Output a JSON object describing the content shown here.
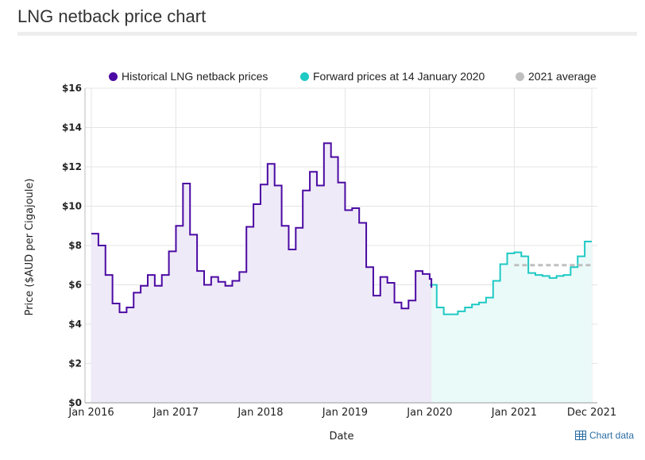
{
  "page": {
    "title": "LNG netback price chart",
    "chart_data_link": "Chart data"
  },
  "colors": {
    "historical": "#4b0aa3",
    "historical_fill": "#efeaf7",
    "forward": "#1fc9c4",
    "forward_fill": "#eafaf9",
    "average": "#bfbfbf",
    "grid": "#e4e4e4"
  },
  "icons": {
    "chart_data": "table-icon"
  },
  "chart_data": {
    "type": "line",
    "step": true,
    "ylabel": "Price ($AUD per Cigajoule)",
    "xlabel": "Date",
    "ylim": [
      0,
      16
    ],
    "xlim": [
      "2016-01",
      "2021-12"
    ],
    "yticks": [
      "$0",
      "$2",
      "$4",
      "$6",
      "$8",
      "$10",
      "$12",
      "$14",
      "$16"
    ],
    "xticks": [
      "Jan 2016",
      "Jan 2017",
      "Jan 2018",
      "Jan 2019",
      "Jan 2020",
      "Jan 2021",
      "Dec 2021"
    ],
    "grid": true,
    "legend_position": "top",
    "series": [
      {
        "name": "Historical LNG netback prices",
        "x": [
          "2016-01",
          "2016-02",
          "2016-03",
          "2016-04",
          "2016-05",
          "2016-06",
          "2016-07",
          "2016-08",
          "2016-09",
          "2016-10",
          "2016-11",
          "2016-12",
          "2017-01",
          "2017-02",
          "2017-03",
          "2017-04",
          "2017-05",
          "2017-06",
          "2017-07",
          "2017-08",
          "2017-09",
          "2017-10",
          "2017-11",
          "2017-12",
          "2018-01",
          "2018-02",
          "2018-03",
          "2018-04",
          "2018-05",
          "2018-06",
          "2018-07",
          "2018-08",
          "2018-09",
          "2018-10",
          "2018-11",
          "2018-12",
          "2019-01",
          "2019-02",
          "2019-03",
          "2019-04",
          "2019-05",
          "2019-06",
          "2019-07",
          "2019-08",
          "2019-09",
          "2019-10",
          "2019-11",
          "2019-12",
          "2020-01"
        ],
        "values": [
          8.6,
          8.0,
          6.5,
          5.05,
          4.6,
          4.85,
          5.6,
          5.95,
          6.5,
          5.95,
          6.5,
          7.7,
          9.0,
          11.15,
          8.55,
          6.7,
          6.0,
          6.4,
          6.15,
          5.95,
          6.2,
          6.65,
          8.95,
          10.1,
          11.1,
          12.15,
          11.05,
          9.0,
          7.8,
          8.9,
          10.8,
          11.75,
          11.05,
          13.2,
          12.5,
          11.2,
          9.8,
          9.9,
          9.15,
          6.9,
          5.45,
          6.4,
          6.1,
          5.1,
          4.8,
          5.2,
          6.7,
          6.55,
          6.3
        ],
        "end_value": 5.85
      },
      {
        "name": "Forward prices at 14 January 2020",
        "x": [
          "2020-01",
          "2020-02",
          "2020-03",
          "2020-04",
          "2020-05",
          "2020-06",
          "2020-07",
          "2020-08",
          "2020-09",
          "2020-10",
          "2020-11",
          "2020-12",
          "2021-01",
          "2021-02",
          "2021-03",
          "2021-04",
          "2021-05",
          "2021-06",
          "2021-07",
          "2021-08",
          "2021-09",
          "2021-10",
          "2021-11",
          "2021-12"
        ],
        "values": [
          6.0,
          4.85,
          4.5,
          4.5,
          4.65,
          4.85,
          5.0,
          5.1,
          5.35,
          6.2,
          7.05,
          7.6,
          7.65,
          7.45,
          6.6,
          6.5,
          6.45,
          6.35,
          6.45,
          6.5,
          6.9,
          7.45,
          8.2,
          8.2
        ]
      },
      {
        "name": "2021 average",
        "x": [
          "2021-01",
          "2021-12"
        ],
        "values": [
          7.0,
          7.0
        ]
      }
    ]
  }
}
